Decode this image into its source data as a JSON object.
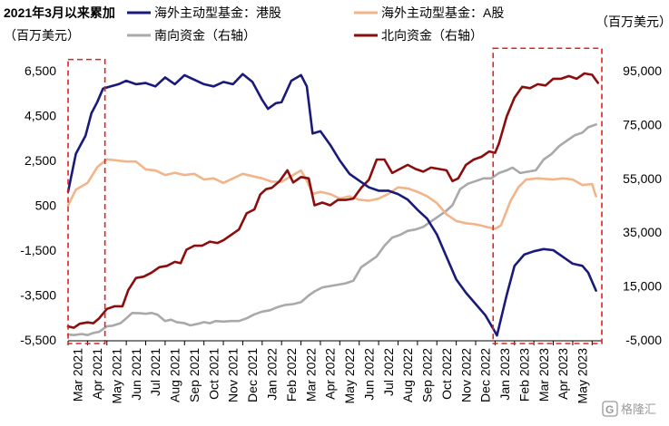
{
  "chart_data": {
    "type": "line",
    "title": "2021年3月以来累加",
    "left_unit": "（百万美元）",
    "right_unit": "（百万美元）",
    "y_left": {
      "min": -5500,
      "max": 7500,
      "ticks": [
        6500,
        4500,
        2500,
        500,
        -1500,
        -3500,
        -5500
      ]
    },
    "y_left_labels": [
      "6,500",
      "4,500",
      "2,500",
      "500",
      "-1,500",
      "-3,500",
      "-5,500"
    ],
    "y_right": {
      "min": -5000,
      "max": 100000,
      "ticks": [
        95000,
        75000,
        55000,
        35000,
        15000,
        -5000
      ]
    },
    "y_right_labels": [
      "95,000",
      "75,000",
      "55,000",
      "35,000",
      "15,000",
      "-5,000"
    ],
    "x_range": [
      0,
      27.5
    ],
    "months": [
      "Mar 2021",
      "Apr 2021",
      "May 2021",
      "Jun 2021",
      "Jul 2021",
      "Aug 2021",
      "Sep 2021",
      "Oct 2021",
      "Nov 2021",
      "Dec 2021",
      "Jan 2022",
      "Feb 2022",
      "Mar 2022",
      "Apr 2022",
      "May 2022",
      "Jun 2022",
      "Jul 2022",
      "Aug 2022",
      "Sep 2022",
      "Oct 2022",
      "Nov 2022",
      "Dec 2022",
      "Jan 2023",
      "Feb 2023",
      "Mar 2023",
      "Apr 2023",
      "May 2023"
    ],
    "series": [
      {
        "name": "海外主动型基金：港股",
        "axis": "left",
        "color": "#1a1a7a",
        "points": [
          [
            0,
            1100
          ],
          [
            0.4,
            2800
          ],
          [
            0.9,
            3600
          ],
          [
            1.2,
            4600
          ],
          [
            1.5,
            5100
          ],
          [
            1.8,
            5700
          ],
          [
            2.2,
            5800
          ],
          [
            2.6,
            5900
          ],
          [
            3,
            6050
          ],
          [
            3.5,
            5900
          ],
          [
            4,
            5950
          ],
          [
            4.5,
            5800
          ],
          [
            5,
            6200
          ],
          [
            5.5,
            5900
          ],
          [
            6,
            6300
          ],
          [
            6.5,
            6100
          ],
          [
            7,
            5900
          ],
          [
            7.5,
            5800
          ],
          [
            8,
            6000
          ],
          [
            8.5,
            5900
          ],
          [
            9,
            6350
          ],
          [
            9.5,
            6000
          ],
          [
            10,
            5200
          ],
          [
            10.3,
            4800
          ],
          [
            10.7,
            5050
          ],
          [
            11,
            5100
          ],
          [
            11.5,
            6050
          ],
          [
            12,
            6300
          ],
          [
            12.3,
            5800
          ],
          [
            12.6,
            3700
          ],
          [
            13,
            3800
          ],
          [
            13.5,
            3200
          ],
          [
            14,
            2500
          ],
          [
            14.5,
            1900
          ],
          [
            15,
            1600
          ],
          [
            15.5,
            1300
          ],
          [
            16,
            1150
          ],
          [
            16.5,
            1150
          ],
          [
            17,
            1000
          ],
          [
            17.5,
            750
          ],
          [
            18,
            300
          ],
          [
            18.5,
            -100
          ],
          [
            19,
            -800
          ],
          [
            19.5,
            -1800
          ],
          [
            20,
            -2800
          ],
          [
            20.5,
            -3400
          ],
          [
            21,
            -3900
          ],
          [
            21.5,
            -4400
          ],
          [
            21.9,
            -5000
          ],
          [
            22.1,
            -5300
          ],
          [
            22.6,
            -3500
          ],
          [
            23,
            -2200
          ],
          [
            23.5,
            -1700
          ],
          [
            24,
            -1550
          ],
          [
            24.5,
            -1450
          ],
          [
            25,
            -1500
          ],
          [
            25.5,
            -1800
          ],
          [
            26,
            -2100
          ],
          [
            26.5,
            -2200
          ],
          [
            26.8,
            -2500
          ],
          [
            27.2,
            -3300
          ]
        ]
      },
      {
        "name": "海外主动型基金：A股",
        "axis": "left",
        "color": "#f2b48a",
        "points": [
          [
            0,
            500
          ],
          [
            0.4,
            1200
          ],
          [
            1,
            1500
          ],
          [
            1.5,
            2200
          ],
          [
            2,
            2550
          ],
          [
            2.5,
            2500
          ],
          [
            3,
            2450
          ],
          [
            3.5,
            2450
          ],
          [
            4,
            2100
          ],
          [
            4.5,
            2050
          ],
          [
            5,
            1850
          ],
          [
            5.5,
            1950
          ],
          [
            6,
            1850
          ],
          [
            6.5,
            1900
          ],
          [
            7,
            1650
          ],
          [
            7.5,
            1700
          ],
          [
            8,
            1500
          ],
          [
            8.5,
            1700
          ],
          [
            9,
            1900
          ],
          [
            9.5,
            1800
          ],
          [
            10,
            1700
          ],
          [
            10.5,
            1550
          ],
          [
            11,
            1550
          ],
          [
            11.5,
            1800
          ],
          [
            12,
            2050
          ],
          [
            12.3,
            1600
          ],
          [
            12.6,
            1000
          ],
          [
            13,
            1100
          ],
          [
            13.5,
            1000
          ],
          [
            14,
            800
          ],
          [
            14.5,
            900
          ],
          [
            15,
            750
          ],
          [
            15.5,
            700
          ],
          [
            16,
            800
          ],
          [
            16.5,
            1000
          ],
          [
            17,
            1300
          ],
          [
            17.5,
            1250
          ],
          [
            18,
            1100
          ],
          [
            18.5,
            900
          ],
          [
            19,
            600
          ],
          [
            19.5,
            100
          ],
          [
            20,
            -200
          ],
          [
            20.5,
            -300
          ],
          [
            21,
            -350
          ],
          [
            21.5,
            -450
          ],
          [
            22,
            -550
          ],
          [
            22.3,
            -400
          ],
          [
            22.8,
            700
          ],
          [
            23.2,
            1300
          ],
          [
            23.6,
            1650
          ],
          [
            24.2,
            1700
          ],
          [
            25,
            1650
          ],
          [
            25.5,
            1700
          ],
          [
            26,
            1650
          ],
          [
            26.5,
            1400
          ],
          [
            27,
            1450
          ],
          [
            27.2,
            900
          ]
        ]
      },
      {
        "name": "南向资金（右轴）",
        "axis": "right",
        "color": "#a9a9a9",
        "points": [
          [
            0,
            -3000
          ],
          [
            0.3,
            -3200
          ],
          [
            0.7,
            -2800
          ],
          [
            1,
            -3200
          ],
          [
            1.3,
            -2400
          ],
          [
            1.6,
            -2000
          ],
          [
            2,
            0
          ],
          [
            2.3,
            300
          ],
          [
            2.7,
            1200
          ],
          [
            3,
            3000
          ],
          [
            3.3,
            5000
          ],
          [
            3.7,
            4900
          ],
          [
            4,
            4700
          ],
          [
            4.3,
            5000
          ],
          [
            4.6,
            4400
          ],
          [
            5,
            2000
          ],
          [
            5.3,
            2500
          ],
          [
            5.6,
            1600
          ],
          [
            6,
            1200
          ],
          [
            6.3,
            400
          ],
          [
            6.7,
            1000
          ],
          [
            7,
            1600
          ],
          [
            7.3,
            1200
          ],
          [
            7.6,
            2000
          ],
          [
            8,
            1800
          ],
          [
            8.4,
            2000
          ],
          [
            8.8,
            2000
          ],
          [
            9.2,
            3000
          ],
          [
            9.6,
            4500
          ],
          [
            10,
            5500
          ],
          [
            10.4,
            6000
          ],
          [
            10.8,
            7200
          ],
          [
            11.2,
            8000
          ],
          [
            11.6,
            8300
          ],
          [
            12,
            9000
          ],
          [
            12.4,
            11500
          ],
          [
            12.7,
            13000
          ],
          [
            13.1,
            14500
          ],
          [
            13.5,
            15000
          ],
          [
            13.9,
            15500
          ],
          [
            14.3,
            16000
          ],
          [
            14.7,
            17000
          ],
          [
            15.1,
            22000
          ],
          [
            15.5,
            24000
          ],
          [
            15.9,
            26000
          ],
          [
            16.3,
            30000
          ],
          [
            16.7,
            33000
          ],
          [
            17.1,
            34000
          ],
          [
            17.5,
            35500
          ],
          [
            17.9,
            36000
          ],
          [
            18.3,
            37000
          ],
          [
            18.7,
            39000
          ],
          [
            19.1,
            41000
          ],
          [
            19.5,
            43000
          ],
          [
            19.8,
            45000
          ],
          [
            20.2,
            51000
          ],
          [
            20.6,
            53000
          ],
          [
            21,
            54000
          ],
          [
            21.4,
            55000
          ],
          [
            21.8,
            55000
          ],
          [
            22.2,
            57000
          ],
          [
            22.6,
            58000
          ],
          [
            22.9,
            59000
          ],
          [
            23.3,
            57000
          ],
          [
            23.7,
            57500
          ],
          [
            24.1,
            58000
          ],
          [
            24.5,
            62000
          ],
          [
            24.9,
            64000
          ],
          [
            25.3,
            67000
          ],
          [
            25.7,
            69000
          ],
          [
            26.1,
            71000
          ],
          [
            26.5,
            72000
          ],
          [
            26.8,
            74000
          ],
          [
            27.2,
            75000
          ]
        ]
      },
      {
        "name": "北向资金（右轴）",
        "axis": "right",
        "color": "#8b0d0d",
        "points": [
          [
            0,
            0
          ],
          [
            0.3,
            -500
          ],
          [
            0.6,
            1000
          ],
          [
            1,
            1500
          ],
          [
            1.3,
            1200
          ],
          [
            1.6,
            3000
          ],
          [
            2,
            6500
          ],
          [
            2.4,
            7500
          ],
          [
            2.8,
            7500
          ],
          [
            3.1,
            13500
          ],
          [
            3.5,
            18000
          ],
          [
            3.9,
            18500
          ],
          [
            4.3,
            20000
          ],
          [
            4.7,
            22000
          ],
          [
            5.1,
            22500
          ],
          [
            5.5,
            24000
          ],
          [
            5.8,
            23500
          ],
          [
            6.1,
            28500
          ],
          [
            6.5,
            30000
          ],
          [
            6.9,
            30000
          ],
          [
            7.3,
            31500
          ],
          [
            7.7,
            31000
          ],
          [
            8,
            32000
          ],
          [
            8.4,
            34000
          ],
          [
            8.8,
            36000
          ],
          [
            9.2,
            42000
          ],
          [
            9.6,
            43500
          ],
          [
            9.9,
            49000
          ],
          [
            10.2,
            51000
          ],
          [
            10.5,
            51500
          ],
          [
            10.9,
            54000
          ],
          [
            11.3,
            58000
          ],
          [
            11.6,
            53500
          ],
          [
            12,
            55500
          ],
          [
            12.4,
            55000
          ],
          [
            12.7,
            45000
          ],
          [
            13.1,
            46000
          ],
          [
            13.5,
            45000
          ],
          [
            13.9,
            47000
          ],
          [
            14.3,
            47000
          ],
          [
            14.7,
            47500
          ],
          [
            15.1,
            51500
          ],
          [
            15.5,
            54500
          ],
          [
            15.9,
            62000
          ],
          [
            16.3,
            62000
          ],
          [
            16.7,
            57000
          ],
          [
            17.1,
            58500
          ],
          [
            17.5,
            60000
          ],
          [
            17.9,
            58500
          ],
          [
            18.3,
            57500
          ],
          [
            18.7,
            59000
          ],
          [
            19.1,
            58500
          ],
          [
            19.5,
            58000
          ],
          [
            19.8,
            54000
          ],
          [
            20.1,
            55000
          ],
          [
            20.5,
            60000
          ],
          [
            20.9,
            62000
          ],
          [
            21.3,
            63000
          ],
          [
            21.7,
            65000
          ],
          [
            22,
            64500
          ],
          [
            22.2,
            68000
          ],
          [
            22.6,
            78000
          ],
          [
            23,
            85000
          ],
          [
            23.4,
            89000
          ],
          [
            23.8,
            88500
          ],
          [
            24.2,
            90000
          ],
          [
            24.6,
            89500
          ],
          [
            25,
            92000
          ],
          [
            25.4,
            92000
          ],
          [
            25.8,
            93000
          ],
          [
            26.2,
            92000
          ],
          [
            26.6,
            94000
          ],
          [
            27,
            93500
          ],
          [
            27.3,
            90500
          ]
        ]
      }
    ],
    "annotation_boxes": [
      {
        "x_from": 0,
        "x_to": 1.9,
        "y_from": -5500,
        "y_to": 7000,
        "axis": "left",
        "style": "red dashed"
      },
      {
        "x_from": 21.9,
        "x_to": 27.5,
        "y_from": -5500,
        "y_to": 7500,
        "axis": "left",
        "style": "red dashed"
      }
    ],
    "legend": [
      {
        "label": "海外主动型基金：港股",
        "color": "#1a1a7a"
      },
      {
        "label": "海外主动型基金：A股",
        "color": "#f2b48a"
      },
      {
        "label": "南向资金（右轴）",
        "color": "#a9a9a9"
      },
      {
        "label": "北向资金（右轴）",
        "color": "#8b0d0d"
      }
    ],
    "legend_placement": "top",
    "grid": false
  },
  "watermark": "格隆汇",
  "watermark_icon": "g-logo-icon"
}
